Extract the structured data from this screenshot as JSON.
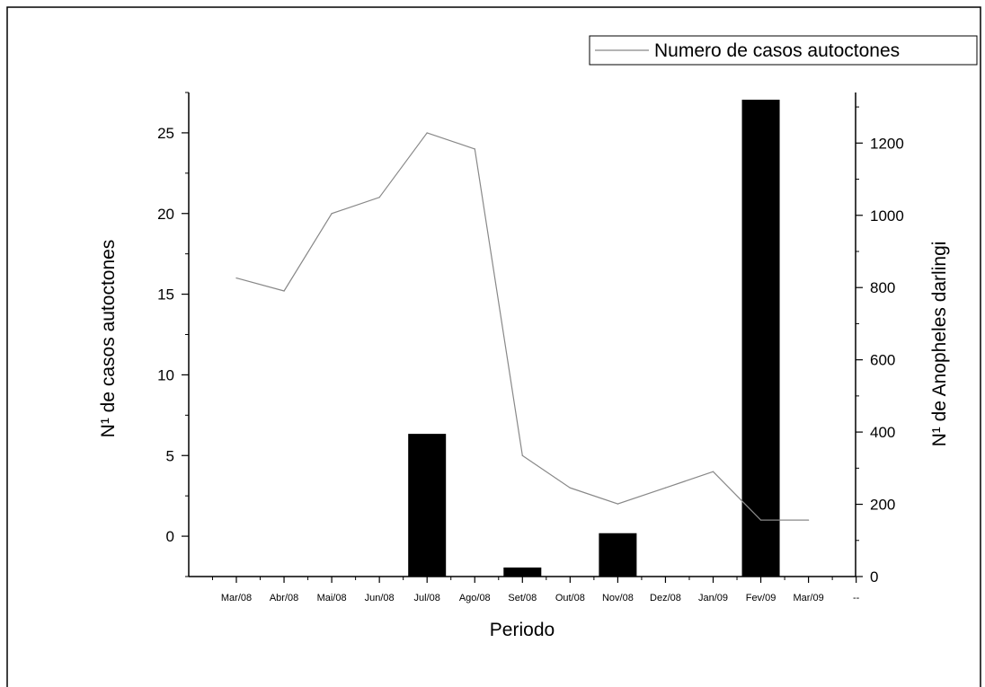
{
  "chart_data": {
    "type": "bar",
    "title": "",
    "xlabel": "Periodo",
    "ylabel": "N¹ de casos autoctones",
    "y2label": "N¹ de Anopheles darlingi",
    "categories": [
      "Mar/08",
      "Abr/08",
      "Mai/08",
      "Jun/08",
      "Jul/08",
      "Ago/08",
      "Set/08",
      "Out/08",
      "Nov/08",
      "Dez/08",
      "Jan/09",
      "Fev/09",
      "Mar/09",
      "--"
    ],
    "ylim": [
      -2.5,
      27.5
    ],
    "y2lim": [
      0,
      1340
    ],
    "yticks": [
      "0",
      "5",
      "10",
      "15",
      "20",
      "25"
    ],
    "y2ticks": [
      "0",
      "200",
      "400",
      "600",
      "800",
      "1000",
      "1200"
    ],
    "series": [
      {
        "name": "Numero de casos autoctones",
        "kind": "line",
        "axis": "left",
        "color": "#888888",
        "x": [
          "Mar/08",
          "Abr/08",
          "Mai/08",
          "Jun/08",
          "Jul/08",
          "Ago/08",
          "Set/08",
          "Out/08",
          "Nov/08",
          "Dez/08",
          "Jan/09",
          "Fev/09",
          "Mar/09"
        ],
        "values": [
          16,
          15.2,
          20,
          21,
          25,
          24,
          5,
          3,
          2,
          3,
          4,
          1,
          1
        ]
      },
      {
        "kind": "bar",
        "axis": "right",
        "color": "#000000",
        "x": [
          "Mar/08",
          "Abr/08",
          "Mai/08",
          "Jun/08",
          "Jul/08",
          "Ago/08",
          "Set/08",
          "Out/08",
          "Nov/08",
          "Dez/08",
          "Jan/09",
          "Fev/09",
          "Mar/09"
        ],
        "values": [
          0,
          0,
          0,
          0,
          395,
          0,
          25,
          0,
          120,
          0,
          0,
          1320,
          0
        ]
      }
    ],
    "legend": {
      "placement": "top-right",
      "entries": [
        "Numero de casos autoctones"
      ]
    },
    "grid": false
  }
}
